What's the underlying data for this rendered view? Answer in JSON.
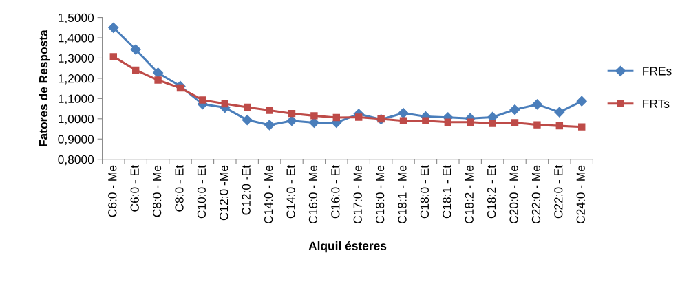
{
  "chart_data": {
    "type": "line",
    "xlabel": "Alquil ésteres",
    "ylabel": "Fatores de Resposta",
    "categories": [
      "C6:0 - Me",
      "C6:0 - Et",
      "C8:0 - Me",
      "C8:0 - Et",
      "C10:0 - Et",
      "C12:0 -Me",
      "C12:0 -Et",
      "C14:0 - Me",
      "C14:0 - Et",
      "C16:0 - Me",
      "C16:0 - Et",
      "C17:0 - Me",
      "C18:0 - Me",
      "C18:1 - Me",
      "C18:0 - Et",
      "C18:1 - Et",
      "C18:2 - Me",
      "C18:2 - Et",
      "C20:0 - Me",
      "C22:0 - Me",
      "C22:0 - Et",
      "C24:0 - Me"
    ],
    "series": [
      {
        "name": "FREs",
        "color": "#4a7ebb",
        "marker": "diamond",
        "values": [
          1.45,
          1.342,
          1.227,
          1.161,
          1.072,
          1.055,
          0.994,
          0.969,
          0.99,
          0.981,
          0.981,
          1.024,
          0.997,
          1.028,
          1.011,
          1.007,
          1.002,
          1.008,
          1.045,
          1.071,
          1.033,
          1.087
        ]
      },
      {
        "name": "FRTs",
        "color": "#be4b48",
        "marker": "square",
        "values": [
          1.307,
          1.241,
          1.191,
          1.152,
          1.093,
          1.074,
          1.057,
          1.042,
          1.026,
          1.015,
          1.006,
          1.008,
          0.999,
          0.99,
          0.99,
          0.983,
          0.983,
          0.977,
          0.981,
          0.97,
          0.965,
          0.96
        ]
      }
    ],
    "ylim": [
      0.8,
      1.5
    ],
    "yticks": [
      {
        "value": 0.8,
        "label": "0,8000"
      },
      {
        "value": 0.9,
        "label": "0,9000"
      },
      {
        "value": 1.0,
        "label": "1,0000"
      },
      {
        "value": 1.1,
        "label": "1,1000"
      },
      {
        "value": 1.2,
        "label": "1,2000"
      },
      {
        "value": 1.3,
        "label": "1,3000"
      },
      {
        "value": 1.4,
        "label": "1,4000"
      },
      {
        "value": 1.5,
        "label": "1,5000"
      }
    ],
    "grid": false,
    "legend": "right",
    "line_style": "solid"
  }
}
